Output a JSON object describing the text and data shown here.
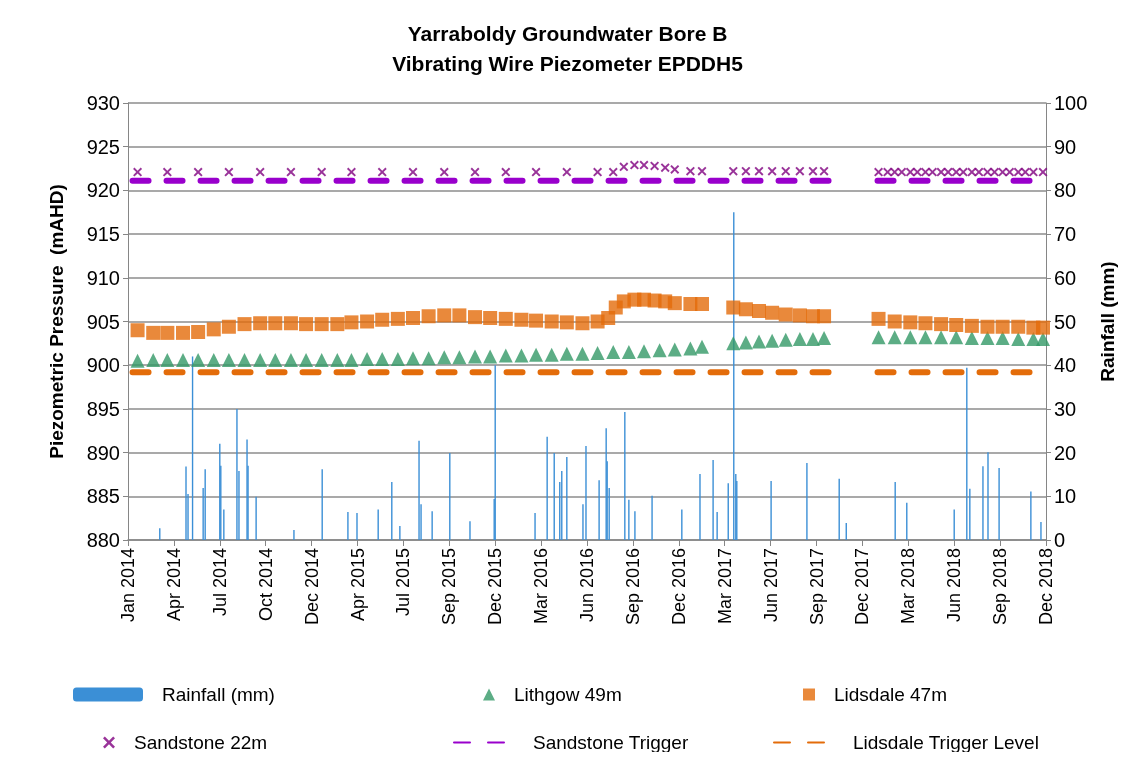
{
  "chart_data": {
    "type": "scatter",
    "title": "Yarraboldy Groundwater Bore B",
    "subtitle": "Vibrating Wire Piezometer EPDDH5",
    "ylabel": "Piezometric Pressure  (mAHD)",
    "y2label": "Rainfall (mm)",
    "xlim": [
      "2014-01-01",
      "2018-12-26"
    ],
    "xticks": [
      {
        "value": "2014-01-01",
        "label": "Jan 2014"
      },
      {
        "value": "2014-04-02",
        "label": "Apr 2014"
      },
      {
        "value": "2014-07-02",
        "label": "Jul 2014"
      },
      {
        "value": "2014-10-01",
        "label": "Oct 2014"
      },
      {
        "value": "2014-12-31",
        "label": "Dec 2014"
      },
      {
        "value": "2015-04-01",
        "label": "Apr 2015"
      },
      {
        "value": "2015-07-01",
        "label": "Jul 2015"
      },
      {
        "value": "2015-09-30",
        "label": "Sep 2015"
      },
      {
        "value": "2015-12-30",
        "label": "Dec 2015"
      },
      {
        "value": "2016-03-30",
        "label": "Mar 2016"
      },
      {
        "value": "2016-06-29",
        "label": "Jun 2016"
      },
      {
        "value": "2016-09-28",
        "label": "Sep 2016"
      },
      {
        "value": "2016-12-28",
        "label": "Dec 2016"
      },
      {
        "value": "2017-03-29",
        "label": "Mar 2017"
      },
      {
        "value": "2017-06-28",
        "label": "Jun 2017"
      },
      {
        "value": "2017-09-27",
        "label": "Sep 2017"
      },
      {
        "value": "2017-12-27",
        "label": "Dec 2017"
      },
      {
        "value": "2018-03-28",
        "label": "Mar 2018"
      },
      {
        "value": "2018-06-27",
        "label": "Jun 2018"
      },
      {
        "value": "2018-09-26",
        "label": "Sep 2018"
      },
      {
        "value": "2018-12-26",
        "label": "Dec 2018"
      }
    ],
    "ylim": [
      880,
      930
    ],
    "yticks": [
      880,
      885,
      890,
      895,
      900,
      905,
      910,
      915,
      920,
      925,
      930
    ],
    "y2lim": [
      0,
      100
    ],
    "y2ticks": [
      0,
      10,
      20,
      30,
      40,
      50,
      60,
      70,
      80,
      90,
      100
    ],
    "grid": "y",
    "legend": "bottom",
    "series": [
      {
        "name": "Rainfall (mm)",
        "type": "bar",
        "axis": "y2",
        "color": "#3b8fd6",
        "x": [
          "2014-03-05",
          "2014-04-26",
          "2014-04-30",
          "2014-05-09",
          "2014-05-30",
          "2014-06-03",
          "2014-07-02",
          "2014-07-04",
          "2014-07-10",
          "2014-08-05",
          "2014-08-09",
          "2014-08-25",
          "2014-08-27",
          "2014-09-12",
          "2014-11-26",
          "2015-01-21",
          "2015-03-13",
          "2015-03-31",
          "2015-05-12",
          "2015-06-08",
          "2015-06-24",
          "2015-08-01",
          "2015-08-05",
          "2015-08-27",
          "2015-10-01",
          "2015-11-10",
          "2015-12-28",
          "2015-12-30",
          "2016-03-18",
          "2016-04-11",
          "2016-04-25",
          "2016-05-06",
          "2016-05-10",
          "2016-05-20",
          "2016-06-21",
          "2016-06-27",
          "2016-07-23",
          "2016-08-06",
          "2016-08-08",
          "2016-08-12",
          "2016-09-12",
          "2016-09-20",
          "2016-10-02",
          "2016-11-05",
          "2017-01-03",
          "2017-02-08",
          "2017-03-06",
          "2017-03-14",
          "2017-04-05",
          "2017-04-16",
          "2017-04-20",
          "2017-04-22",
          "2017-06-29",
          "2017-09-08",
          "2017-11-11",
          "2017-11-25",
          "2018-03-02",
          "2018-03-25",
          "2018-06-27",
          "2018-07-22",
          "2018-07-28",
          "2018-08-23",
          "2018-09-02",
          "2018-09-24",
          "2018-11-26",
          "2018-12-16"
        ],
        "values": [
          2.7,
          16.8,
          10.5,
          42,
          11.9,
          16.2,
          22,
          17,
          7,
          30,
          15.8,
          23,
          17,
          9.9,
          2.3,
          16.2,
          6.4,
          6.2,
          7,
          13.3,
          3.2,
          22.7,
          8.2,
          6.6,
          19.9,
          4.3,
          9.4,
          40,
          6.2,
          23.6,
          19.9,
          13.3,
          15.8,
          19,
          8.2,
          21.5,
          13.7,
          25.6,
          18,
          11.9,
          29.3,
          9.2,
          6.6,
          10.1,
          7,
          15.1,
          18.3,
          6.4,
          13,
          75,
          15.1,
          13.5,
          13.5,
          17.6,
          14,
          3.9,
          13.3,
          8.5,
          7,
          39.4,
          11.7,
          16.9,
          20.1,
          16.5,
          11.1,
          4.1
        ]
      },
      {
        "name": "Lithgow 49m",
        "marker": "triangle",
        "color": "#339966",
        "x": [
          "2014-01-20",
          "2014-02-20",
          "2014-03-20",
          "2014-04-20",
          "2014-05-20",
          "2014-06-20",
          "2014-07-20",
          "2014-08-20",
          "2014-09-20",
          "2014-10-20",
          "2014-11-20",
          "2014-12-20",
          "2015-01-20",
          "2015-02-20",
          "2015-03-20",
          "2015-04-20",
          "2015-05-20",
          "2015-06-20",
          "2015-07-20",
          "2015-08-20",
          "2015-09-20",
          "2015-10-20",
          "2015-11-20",
          "2015-12-20",
          "2016-01-20",
          "2016-02-20",
          "2016-03-20",
          "2016-04-20",
          "2016-05-20",
          "2016-06-20",
          "2016-07-20",
          "2016-08-20",
          "2016-09-20",
          "2016-10-20",
          "2016-11-20",
          "2016-12-20",
          "2017-01-20",
          "2017-02-12",
          "2017-04-15",
          "2017-05-10",
          "2017-06-05",
          "2017-07-01",
          "2017-07-28",
          "2017-08-25",
          "2017-09-20",
          "2017-10-12",
          "2018-01-28",
          "2018-03-01",
          "2018-04-01",
          "2018-05-01",
          "2018-06-01",
          "2018-07-01",
          "2018-08-01",
          "2018-09-01",
          "2018-10-01",
          "2018-11-01",
          "2018-12-01",
          "2018-12-20"
        ],
        "values": [
          900.5,
          900.6,
          900.6,
          900.6,
          900.6,
          900.6,
          900.6,
          900.6,
          900.6,
          900.6,
          900.6,
          900.6,
          900.6,
          900.6,
          900.6,
          900.7,
          900.7,
          900.7,
          900.8,
          900.8,
          900.9,
          900.9,
          901.0,
          901.0,
          901.1,
          901.1,
          901.2,
          901.2,
          901.3,
          901.3,
          901.4,
          901.5,
          901.5,
          901.6,
          901.7,
          901.8,
          901.9,
          902.1,
          902.5,
          902.6,
          902.7,
          902.8,
          902.9,
          903.0,
          903.0,
          903.1,
          903.2,
          903.2,
          903.2,
          903.2,
          903.2,
          903.2,
          903.1,
          903.1,
          903.1,
          903.0,
          903.0,
          903.0
        ]
      },
      {
        "name": "Lidsdale 47m",
        "marker": "square",
        "color": "#e36c0a",
        "x": [
          "2014-01-20",
          "2014-02-20",
          "2014-03-20",
          "2014-04-20",
          "2014-05-20",
          "2014-06-20",
          "2014-07-20",
          "2014-08-20",
          "2014-09-20",
          "2014-10-20",
          "2014-11-20",
          "2014-12-20",
          "2015-01-20",
          "2015-02-20",
          "2015-03-20",
          "2015-04-20",
          "2015-05-20",
          "2015-06-20",
          "2015-07-20",
          "2015-08-20",
          "2015-09-20",
          "2015-10-20",
          "2015-11-20",
          "2015-12-20",
          "2016-01-20",
          "2016-02-20",
          "2016-03-20",
          "2016-04-20",
          "2016-05-20",
          "2016-06-20",
          "2016-07-20",
          "2016-08-10",
          "2016-08-25",
          "2016-09-10",
          "2016-10-01",
          "2016-10-20",
          "2016-11-10",
          "2016-12-01",
          "2016-12-20",
          "2017-01-20",
          "2017-02-12",
          "2017-04-15",
          "2017-05-10",
          "2017-06-05",
          "2017-07-01",
          "2017-07-28",
          "2017-08-25",
          "2017-09-20",
          "2017-10-12",
          "2018-01-28",
          "2018-03-01",
          "2018-04-01",
          "2018-05-01",
          "2018-06-01",
          "2018-07-01",
          "2018-08-01",
          "2018-09-01",
          "2018-10-01",
          "2018-11-01",
          "2018-12-01",
          "2018-12-20"
        ],
        "values": [
          904.0,
          903.7,
          903.7,
          903.7,
          903.8,
          904.1,
          904.4,
          904.7,
          904.8,
          904.8,
          904.8,
          904.7,
          904.7,
          904.7,
          904.9,
          905.0,
          905.2,
          905.3,
          905.4,
          905.6,
          905.7,
          905.7,
          905.5,
          905.4,
          905.3,
          905.2,
          905.1,
          905.0,
          904.9,
          904.8,
          905.0,
          905.4,
          906.6,
          907.3,
          907.5,
          907.5,
          907.4,
          907.3,
          907.1,
          907.0,
          907.0,
          906.6,
          906.4,
          906.2,
          906.0,
          905.8,
          905.7,
          905.6,
          905.6,
          905.3,
          905.0,
          904.9,
          904.8,
          904.7,
          904.6,
          904.5,
          904.4,
          904.4,
          904.4,
          904.3,
          904.3
        ]
      },
      {
        "name": "Sandstone 22m",
        "marker": "cross",
        "color": "#800080",
        "x": [
          "2014-01-20",
          "2014-03-20",
          "2014-05-20",
          "2014-07-20",
          "2014-09-20",
          "2014-11-20",
          "2015-01-20",
          "2015-03-20",
          "2015-05-20",
          "2015-07-20",
          "2015-09-20",
          "2015-11-20",
          "2016-01-20",
          "2016-03-20",
          "2016-05-20",
          "2016-07-20",
          "2016-08-20",
          "2016-09-10",
          "2016-10-01",
          "2016-10-20",
          "2016-11-10",
          "2016-12-01",
          "2016-12-20",
          "2017-01-20",
          "2017-02-12",
          "2017-04-15",
          "2017-05-10",
          "2017-06-05",
          "2017-07-01",
          "2017-07-28",
          "2017-08-25",
          "2017-09-20",
          "2017-10-12",
          "2018-01-28",
          "2018-02-15",
          "2018-03-01",
          "2018-03-15",
          "2018-04-01",
          "2018-04-15",
          "2018-05-01",
          "2018-05-15",
          "2018-06-01",
          "2018-06-15",
          "2018-07-01",
          "2018-07-15",
          "2018-08-01",
          "2018-08-15",
          "2018-09-01",
          "2018-09-15",
          "2018-10-01",
          "2018-10-15",
          "2018-11-01",
          "2018-11-15",
          "2018-12-01",
          "2018-12-20"
        ],
        "values": [
          922.1,
          922.1,
          922.1,
          922.1,
          922.1,
          922.1,
          922.1,
          922.1,
          922.1,
          922.1,
          922.1,
          922.1,
          922.1,
          922.1,
          922.1,
          922.1,
          922.1,
          922.7,
          922.9,
          922.9,
          922.8,
          922.6,
          922.4,
          922.2,
          922.2,
          922.2,
          922.2,
          922.2,
          922.2,
          922.2,
          922.2,
          922.2,
          922.2,
          922.1,
          922.1,
          922.1,
          922.1,
          922.1,
          922.1,
          922.1,
          922.1,
          922.1,
          922.1,
          922.1,
          922.1,
          922.1,
          922.1,
          922.1,
          922.1,
          922.1,
          922.1,
          922.1,
          922.1,
          922.1,
          922.1
        ]
      },
      {
        "name": "Sandstone Trigger",
        "type": "line",
        "marker": "none",
        "line_style": "dashed",
        "color": "#9900cc",
        "x": [
          "2014-01-10",
          "2017-10-22",
          "2017-12-01",
          "2018-01-26",
          "2018-11-26"
        ],
        "values": [
          921.1,
          921.1,
          null,
          921.1,
          921.1
        ]
      },
      {
        "name": "Lidsdale Trigger Level",
        "type": "line",
        "marker": "none",
        "line_style": "dashed",
        "color": "#e36c0a",
        "x": [
          "2014-01-10",
          "2017-10-22",
          "2017-12-01",
          "2018-01-26",
          "2018-11-26"
        ],
        "values": [
          899.2,
          899.2,
          null,
          899.2,
          899.2
        ]
      }
    ]
  }
}
